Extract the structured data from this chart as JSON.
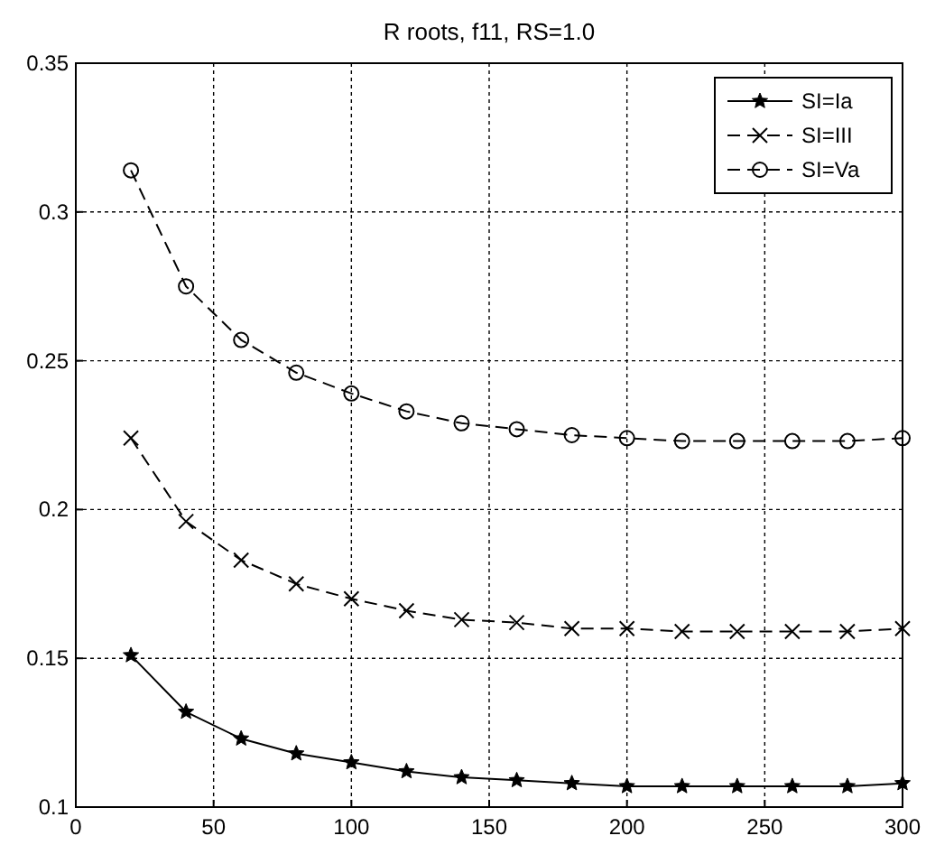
{
  "chart_data": {
    "type": "line",
    "title": "R roots, f11,  RS=1.0",
    "x": [
      20,
      40,
      60,
      80,
      100,
      120,
      140,
      160,
      180,
      200,
      220,
      240,
      260,
      280,
      300
    ],
    "series": [
      {
        "name": "SI=Ia",
        "color": "#000000",
        "marker": "star",
        "line_style": "solid",
        "values": [
          0.151,
          0.132,
          0.123,
          0.118,
          0.115,
          0.112,
          0.11,
          0.109,
          0.108,
          0.107,
          0.107,
          0.107,
          0.107,
          0.107,
          0.108
        ]
      },
      {
        "name": "SI=III",
        "color": "#000000",
        "marker": "cross",
        "line_style": "dashed",
        "values": [
          0.224,
          0.196,
          0.183,
          0.175,
          0.17,
          0.166,
          0.163,
          0.162,
          0.16,
          0.16,
          0.159,
          0.159,
          0.159,
          0.159,
          0.16
        ]
      },
      {
        "name": "SI=Va",
        "color": "#000000",
        "marker": "circle",
        "line_style": "dashed",
        "values": [
          0.314,
          0.275,
          0.257,
          0.246,
          0.239,
          0.233,
          0.229,
          0.227,
          0.225,
          0.224,
          0.223,
          0.223,
          0.223,
          0.223,
          0.224
        ]
      }
    ],
    "xlim": [
      0,
      300
    ],
    "xticks": [
      0,
      50,
      100,
      150,
      200,
      250,
      300
    ],
    "ylim": [
      0.1,
      0.35
    ],
    "yticks": [
      0.1,
      0.15,
      0.2,
      0.25,
      0.3,
      0.35
    ],
    "grid": true,
    "legend": "top right"
  }
}
